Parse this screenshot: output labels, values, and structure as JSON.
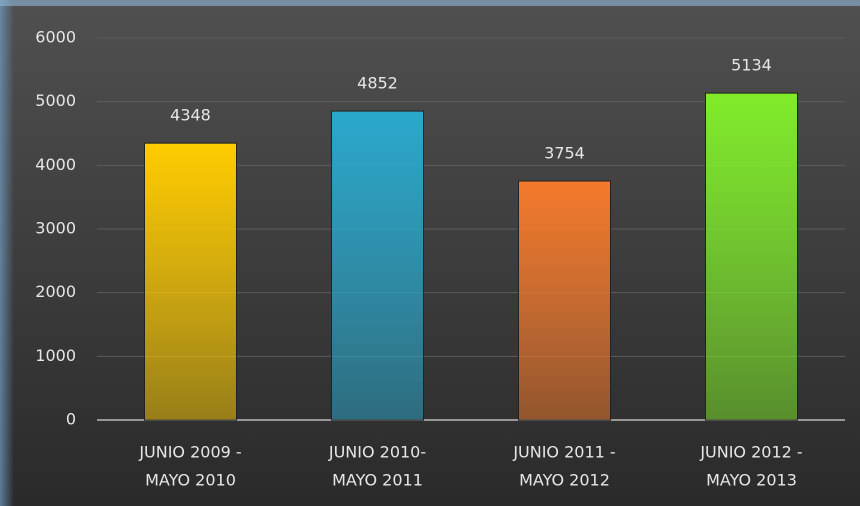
{
  "chart_data": {
    "type": "bar",
    "categories": [
      [
        "JUNIO 2009 -",
        "MAYO 2010"
      ],
      [
        "JUNIO 2010-",
        "MAYO 2011"
      ],
      [
        "JUNIO 2011 -",
        "MAYO 2012"
      ],
      [
        "JUNIO 2012 -",
        "MAYO 2013"
      ]
    ],
    "values": [
      4348,
      4852,
      3754,
      5134
    ],
    "colors": [
      "#ffcc00",
      "#2aa8cc",
      "#f47a2c",
      "#80ec2a"
    ],
    "ylim": [
      0,
      6000
    ],
    "yticks": [
      0,
      1000,
      2000,
      3000,
      4000,
      5000,
      6000
    ],
    "grid": true
  }
}
